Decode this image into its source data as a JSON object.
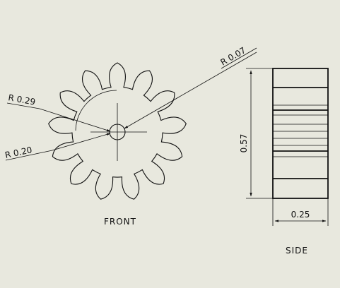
{
  "drawing": {
    "background": "#e8e8de",
    "line_color": "#111111",
    "views": {
      "front": {
        "label": "FRONT",
        "tooth_count": 13
      },
      "side": {
        "label": "SIDE"
      }
    },
    "dimensions": {
      "tip_radius": "R 0.07",
      "outer_radius": "R 0.29",
      "root_radius": "R 0.20",
      "height": "0.57",
      "width": "0.25"
    }
  }
}
